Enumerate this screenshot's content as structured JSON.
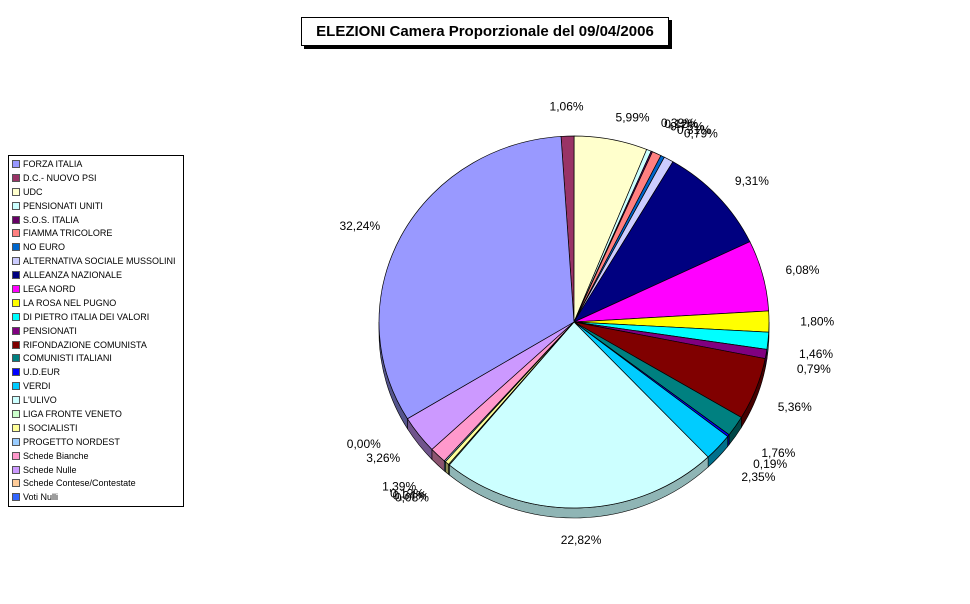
{
  "chart_data": {
    "type": "pie",
    "title": "ELEZIONI Camera Proporzionale del 09/04/2006",
    "legend_position": "left",
    "slices": [
      {
        "label": "FORZA ITALIA",
        "value": 32.24,
        "color": "#9999ff",
        "pct": "32,24%"
      },
      {
        "label": "D.C.- NUOVO PSI",
        "value": 1.06,
        "color": "#993366",
        "pct": "1,06%"
      },
      {
        "label": "UDC",
        "value": 5.99,
        "color": "#ffffcc",
        "pct": "5,99%"
      },
      {
        "label": "PENSIONATI UNITI",
        "value": 0.39,
        "color": "#ccffff",
        "pct": "0,39%"
      },
      {
        "label": "S.O.S. ITALIA",
        "value": 0.12,
        "color": "#660066",
        "pct": "0,12%"
      },
      {
        "label": "FIAMMA TRICOLORE",
        "value": 0.75,
        "color": "#ff8080",
        "pct": "0,75%"
      },
      {
        "label": "NO EURO",
        "value": 0.31,
        "color": "#0066cc",
        "pct": "0,31%"
      },
      {
        "label": "ALTERNATIVA SOCIALE MUSSOLINI",
        "value": 0.79,
        "color": "#ccccff",
        "pct": "0,79%"
      },
      {
        "label": "ALLEANZA NAZIONALE",
        "value": 9.31,
        "color": "#000080",
        "pct": "9,31%"
      },
      {
        "label": "LEGA NORD",
        "value": 6.08,
        "color": "#ff00ff",
        "pct": "6,08%"
      },
      {
        "label": "LA ROSA NEL PUGNO",
        "value": 1.8,
        "color": "#ffff00",
        "pct": "1,80%"
      },
      {
        "label": "DI PIETRO ITALIA DEI VALORI",
        "value": 1.46,
        "color": "#00ffff",
        "pct": "1,46%"
      },
      {
        "label": "PENSIONATI",
        "value": 0.79,
        "color": "#800080",
        "pct": "0,79%"
      },
      {
        "label": "RIFONDAZIONE COMUNISTA",
        "value": 5.36,
        "color": "#800000",
        "pct": "5,36%"
      },
      {
        "label": "COMUNISTI ITALIANI",
        "value": 1.76,
        "color": "#008080",
        "pct": "1,76%"
      },
      {
        "label": "U.D.EUR",
        "value": 0.19,
        "color": "#0000ff",
        "pct": "0,19%"
      },
      {
        "label": "VERDI",
        "value": 2.35,
        "color": "#00ccff",
        "pct": "2,35%"
      },
      {
        "label": "L'ULIVO",
        "value": 22.82,
        "color": "#ccffff",
        "pct": "22,82%"
      },
      {
        "label": "LIGA FRONTE VENETO",
        "value": 0.08,
        "color": "#ccffcc",
        "pct": "0,08%"
      },
      {
        "label": "I SOCIALISTI",
        "value": 0.34,
        "color": "#ffff99",
        "pct": "0,34%"
      },
      {
        "label": "PROGETTO NORDEST",
        "value": 0.12,
        "color": "#99ccff",
        "pct": "0,12%"
      },
      {
        "label": "Schede Bianche",
        "value": 1.39,
        "color": "#ff99cc",
        "pct": "1,39%"
      },
      {
        "label": "Schede Nulle",
        "value": 3.26,
        "color": "#cc99ff",
        "pct": "3,26%"
      },
      {
        "label": "Schede Contese/Contestate",
        "value": 0.0,
        "color": "#ffcc99",
        "pct": "0,00%"
      },
      {
        "label": "Voti Nulli",
        "value": 0.0,
        "color": "#3366ff",
        "pct": ""
      }
    ]
  }
}
